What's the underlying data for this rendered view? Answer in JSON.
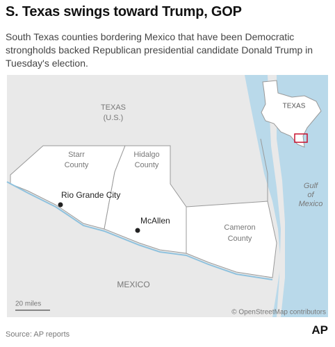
{
  "header": {
    "title": "S. Texas swings toward Trump, GOP",
    "subtitle": "South Texas counties bordering Mexico that have been Democratic strongholds backed Republican presidential candidate Donald Trump in Tuesday's election."
  },
  "map": {
    "country_label": [
      "TEXAS",
      "(U.S.)"
    ],
    "counties": [
      {
        "name": [
          "Starr",
          "County"
        ]
      },
      {
        "name": [
          "Hidalgo",
          "County"
        ]
      },
      {
        "name": [
          "Cameron",
          "County"
        ]
      }
    ],
    "cities": [
      "Rio Grande City",
      "McAllen"
    ],
    "mexico_label": "MEXICO",
    "water_label": [
      "Gulf",
      "of",
      "Mexico"
    ],
    "scale": "20 miles",
    "attribution": "© OpenStreetMap contributors",
    "inset_label": "TEXAS"
  },
  "footer": {
    "source": "Source: AP reports",
    "logo": "AP"
  }
}
